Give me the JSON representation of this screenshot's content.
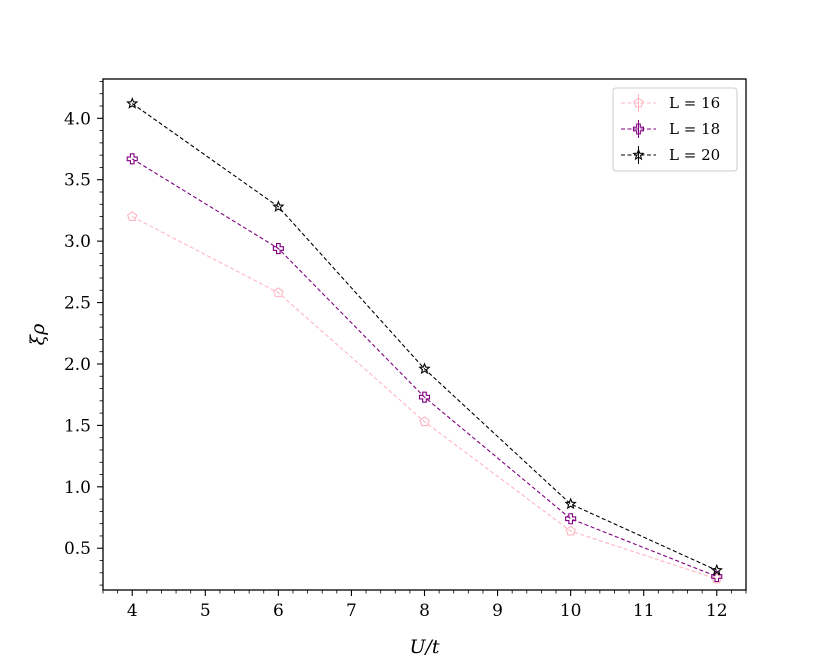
{
  "chart_data": {
    "type": "line",
    "xlabel": "U/t",
    "ylabel": "ξρ",
    "xlim": [
      3.6,
      12.4
    ],
    "ylim": [
      0.16,
      4.32
    ],
    "xticks": [
      "4",
      "5",
      "6",
      "7",
      "8",
      "9",
      "10",
      "11",
      "12"
    ],
    "yticks": [
      "0.5",
      "1.0",
      "1.5",
      "2.0",
      "2.5",
      "3.0",
      "3.5",
      "4.0"
    ],
    "grid": false,
    "legend_position": "top-right",
    "x": [
      4,
      6,
      8,
      10,
      12
    ],
    "series": [
      {
        "name": "L = 16",
        "values": [
          3.2,
          2.58,
          1.53,
          0.64,
          0.25
        ],
        "color": "#ffb6c1",
        "marker": "pentagon",
        "linestyle": "dashed"
      },
      {
        "name": "L = 18",
        "values": [
          3.67,
          2.94,
          1.73,
          0.74,
          0.27
        ],
        "color": "#800080",
        "marker": "plus",
        "linestyle": "dashed"
      },
      {
        "name": "L = 20",
        "values": [
          4.12,
          3.28,
          1.96,
          0.86,
          0.32
        ],
        "color": "#000000",
        "marker": "star",
        "linestyle": "dashed"
      }
    ]
  }
}
